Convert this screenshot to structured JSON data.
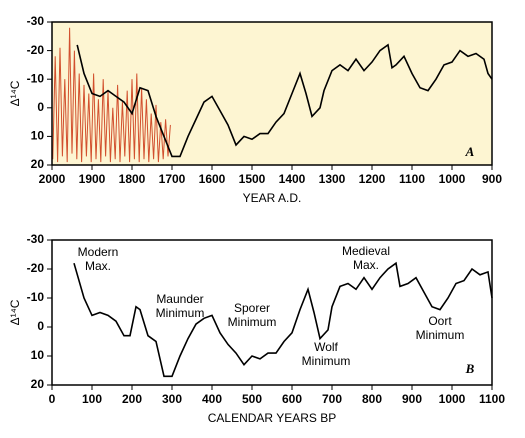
{
  "chart_data": [
    {
      "type": "line",
      "xlabel": "YEAR A.D.",
      "ylabel": "Δ¹⁴C",
      "xlim": [
        2000,
        900
      ],
      "ylim": [
        -30,
        20
      ],
      "y_inverted": true,
      "background": "#fdf5d2",
      "xticks": [
        2000,
        1900,
        1800,
        1700,
        1600,
        1500,
        1400,
        1300,
        1200,
        1100,
        1000,
        900
      ],
      "yticks": [
        -30,
        -20,
        -10,
        0,
        10,
        20
      ],
      "series": [
        {
          "color": "#d2502e",
          "x": [
            1998,
            1992,
            1986,
            1980,
            1974,
            1968,
            1962,
            1956,
            1950,
            1944,
            1938,
            1932,
            1926,
            1920,
            1914,
            1908,
            1902,
            1896,
            1890,
            1884,
            1878,
            1872,
            1866,
            1860,
            1854,
            1848,
            1842,
            1836,
            1830,
            1824,
            1818,
            1812,
            1806,
            1800,
            1794,
            1788,
            1782,
            1776,
            1770,
            1764,
            1758,
            1752,
            1746,
            1740,
            1734,
            1728,
            1722,
            1716,
            1710,
            1704
          ],
          "values": [
            18,
            -18,
            19,
            -21,
            17,
            -10,
            19,
            -28,
            16,
            -20,
            18,
            -12,
            19,
            -8,
            17,
            -5,
            19,
            -12,
            18,
            -3,
            19,
            -10,
            17,
            -6,
            19,
            0,
            18,
            -8,
            19,
            -2,
            17,
            -6,
            19,
            -10,
            18,
            -12,
            19,
            -7,
            18,
            -3,
            19,
            2,
            18,
            -1,
            19,
            5,
            18,
            4,
            17,
            6
          ]
        },
        {
          "color": "#000000",
          "x": [
            1937,
            1920,
            1900,
            1880,
            1860,
            1840,
            1820,
            1800,
            1780,
            1760,
            1740,
            1720,
            1700,
            1680,
            1660,
            1640,
            1620,
            1600,
            1580,
            1560,
            1540,
            1520,
            1500,
            1480,
            1460,
            1440,
            1420,
            1400,
            1380,
            1365,
            1350,
            1330,
            1320,
            1300,
            1280,
            1260,
            1240,
            1220,
            1200,
            1180,
            1160,
            1150,
            1140,
            1120,
            1100,
            1080,
            1060,
            1040,
            1020,
            1000,
            980,
            960,
            940,
            920,
            910,
            900
          ],
          "values": [
            -22,
            -12,
            -5,
            -4,
            -6,
            -4,
            -2,
            2,
            -7,
            -6,
            3,
            10,
            17,
            17,
            10,
            4,
            -2,
            -4,
            1,
            6,
            13,
            10,
            11,
            9,
            9,
            5,
            2,
            -5,
            -12,
            -5,
            3,
            0,
            -6,
            -13,
            -15,
            -13,
            -17,
            -13,
            -16,
            -20,
            -22,
            -14,
            -15,
            -18,
            -12,
            -7,
            -6,
            -10,
            -15,
            -16,
            -20,
            -18,
            -19,
            -17,
            -12,
            -10
          ]
        }
      ],
      "annotations": [
        {
          "lines": [
            "A"
          ]
        }
      ]
    },
    {
      "type": "line",
      "xlabel": "CALENDAR YEARS BP",
      "ylabel": "Δ¹⁴C",
      "xlim": [
        0,
        1100
      ],
      "ylim": [
        -30,
        20
      ],
      "y_inverted": true,
      "background": "#ffffff",
      "xticks": [
        0,
        100,
        200,
        300,
        400,
        500,
        600,
        700,
        800,
        900,
        1000,
        1100
      ],
      "yticks": [
        -30,
        -20,
        -10,
        0,
        10,
        20
      ],
      "series": [
        {
          "color": "#000000",
          "x": [
            55,
            80,
            100,
            120,
            140,
            160,
            180,
            195,
            210,
            220,
            240,
            260,
            280,
            300,
            320,
            340,
            360,
            380,
            400,
            420,
            440,
            460,
            480,
            500,
            520,
            540,
            560,
            580,
            600,
            620,
            640,
            655,
            670,
            690,
            700,
            720,
            740,
            760,
            780,
            800,
            820,
            840,
            860,
            870,
            890,
            910,
            930,
            950,
            970,
            990,
            1010,
            1030,
            1050,
            1070,
            1090,
            1100
          ],
          "values": [
            -22,
            -10,
            -4,
            -5,
            -4,
            -2,
            3,
            3,
            -7,
            -6,
            3,
            5,
            17,
            17,
            10,
            4,
            -1,
            -3,
            -4,
            2,
            6,
            9,
            13,
            10,
            11,
            9,
            9,
            5,
            2,
            -6,
            -13,
            -5,
            4,
            1,
            -7,
            -14,
            -15,
            -13,
            -17,
            -13,
            -17,
            -20,
            -22,
            -14,
            -15,
            -17,
            -12,
            -7,
            -6,
            -10,
            -15,
            -16,
            -20,
            -18,
            -19,
            -10
          ]
        }
      ],
      "annotations": [
        {
          "lines": [
            "Modern",
            "Max."
          ]
        },
        {
          "lines": [
            "Maunder",
            "Minimum"
          ]
        },
        {
          "lines": [
            "Sporer",
            "Minimum"
          ]
        },
        {
          "lines": [
            "Wolf",
            "Minimum"
          ]
        },
        {
          "lines": [
            "Medieval",
            "Max."
          ]
        },
        {
          "lines": [
            "Oort",
            "Minimum"
          ]
        },
        {
          "lines": [
            "B"
          ]
        }
      ]
    }
  ]
}
